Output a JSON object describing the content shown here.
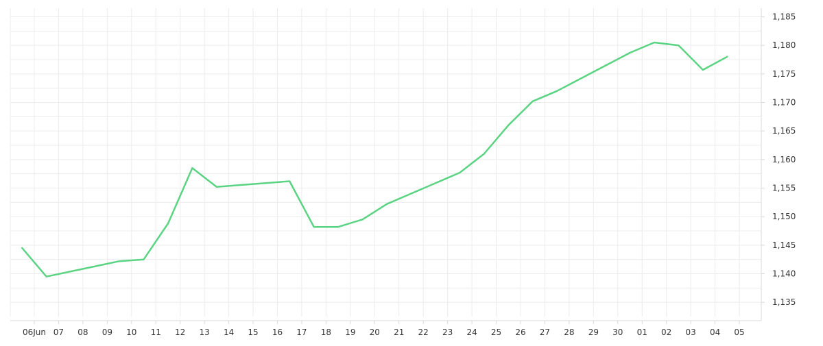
{
  "chart_data": {
    "type": "line",
    "title": "",
    "xlabel": "",
    "ylabel": "",
    "grid": true,
    "line_color": "#5ad482",
    "grid_color": "#ececec",
    "axis_color": "#d9d9d9",
    "x_ticks": [
      "06Jun",
      "07",
      "08",
      "09",
      "10",
      "11",
      "12",
      "13",
      "14",
      "15",
      "16",
      "17",
      "18",
      "19",
      "20",
      "21",
      "22",
      "23",
      "24",
      "25",
      "26",
      "27",
      "28",
      "29",
      "30",
      "01",
      "02",
      "03",
      "04",
      "05"
    ],
    "y_ticks": [
      "1,135",
      "1,140",
      "1,145",
      "1,150",
      "1,155",
      "1,160",
      "1,165",
      "1,170",
      "1,175",
      "1,180",
      "1,185"
    ],
    "ylim": [
      1.1325,
      1.1865
    ],
    "series": [
      {
        "points": [
          {
            "x": 5.5,
            "y": 1.1445
          },
          {
            "x": 6.5,
            "y": 1.1395
          },
          {
            "x": 9.5,
            "y": 1.1422
          },
          {
            "x": 10.5,
            "y": 1.1425
          },
          {
            "x": 11.5,
            "y": 1.1488
          },
          {
            "x": 12.5,
            "y": 1.1585
          },
          {
            "x": 13.5,
            "y": 1.1552
          },
          {
            "x": 16.5,
            "y": 1.1562
          },
          {
            "x": 17.5,
            "y": 1.1482
          },
          {
            "x": 18.5,
            "y": 1.1482
          },
          {
            "x": 19.5,
            "y": 1.1495
          },
          {
            "x": 20.5,
            "y": 1.1522
          },
          {
            "x": 23.5,
            "y": 1.1577
          },
          {
            "x": 24.5,
            "y": 1.161
          },
          {
            "x": 25.5,
            "y": 1.166
          },
          {
            "x": 26.5,
            "y": 1.1702
          },
          {
            "x": 27.5,
            "y": 1.172
          },
          {
            "x": 30.5,
            "y": 1.1787
          },
          {
            "x": 31.5,
            "y": 1.1805
          },
          {
            "x": 32.5,
            "y": 1.18
          },
          {
            "x": 33.5,
            "y": 1.1757
          },
          {
            "x": 34.5,
            "y": 1.178
          }
        ]
      }
    ]
  }
}
